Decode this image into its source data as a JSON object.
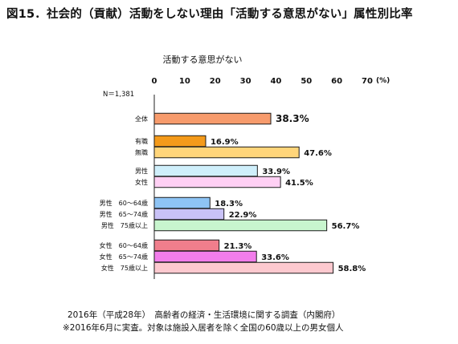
{
  "title": "図15．社会的（貢献）活動をしない理由「活動する意思がない」属性別比率",
  "footnotes": [
    "2016年（平成28年）　高齢者の経済・生活環境に関する調査（内閣府）",
    "※2016年6月に実査。対象は施設入居者を除く全国の60歳以上の男女個人"
  ],
  "chart_data": {
    "type": "bar",
    "orientation": "horizontal",
    "subtitle": "活動する意思がない",
    "n_label": "N＝1,381",
    "unit": "(%)",
    "xlim": [
      0,
      70
    ],
    "ticks": [
      "0",
      "10",
      "20",
      "30",
      "40",
      "50",
      "60",
      "70"
    ],
    "grid": false,
    "categories": [
      "全体",
      "有職",
      "無職",
      "男性",
      "女性",
      "男性　60～64歳",
      "男性　65～74歳",
      "男性　75歳以上",
      "女性　60～64歳",
      "女性　65～74歳",
      "女性　75歳以上"
    ],
    "values": [
      38.3,
      16.9,
      47.6,
      33.9,
      41.5,
      18.3,
      22.9,
      56.7,
      21.3,
      33.6,
      58.8
    ],
    "value_labels": [
      "38.3%",
      "16.9%",
      "47.6%",
      "33.9%",
      "41.5%",
      "18.3%",
      "22.9%",
      "56.7%",
      "21.3%",
      "33.6%",
      "58.8%"
    ],
    "colors": [
      "#F79B6C",
      "#F49A1A",
      "#FFD57A",
      "#CFEFFB",
      "#FFD0F4",
      "#8EC4F5",
      "#C9C2F7",
      "#C8F5CE",
      "#F07E8C",
      "#F27DEB",
      "#FDC9CF"
    ]
  }
}
